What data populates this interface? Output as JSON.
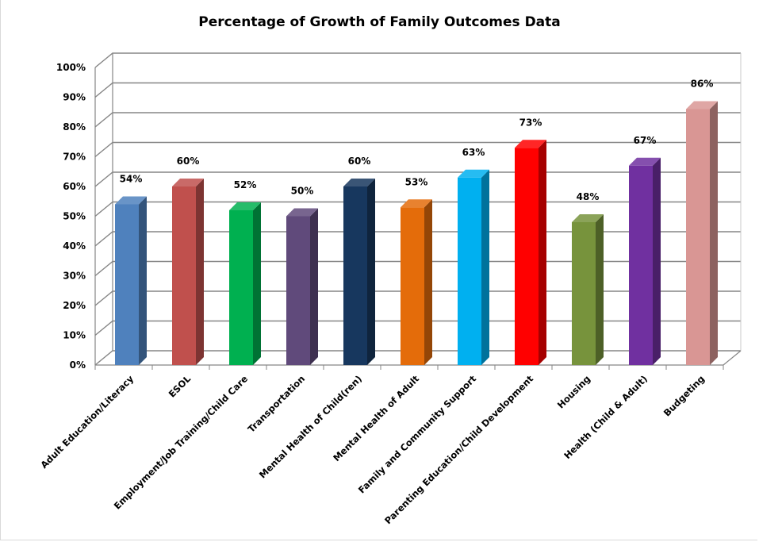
{
  "chart_data": {
    "type": "bar",
    "title": "Percentage of Growth  of Family Outcomes Data",
    "categories": [
      "Adult Education/Literacy",
      "ESOL",
      "Employment/Job Training/Child Care",
      "Transportation",
      "Mental Health of Child(ren)",
      "Mental Health of Adult",
      "Family and Community Support",
      "Parenting Education/Child Development",
      "Housing",
      "Health (Child & Adult)",
      "Budgeting"
    ],
    "values": [
      54,
      60,
      52,
      50,
      60,
      53,
      63,
      73,
      48,
      67,
      86
    ],
    "data_labels": [
      "54%",
      "60%",
      "52%",
      "50%",
      "60%",
      "53%",
      "63%",
      "73%",
      "48%",
      "67%",
      "86%"
    ],
    "colors": [
      "#4f81bd",
      "#c0504d",
      "#00b050",
      "#604a7b",
      "#17375e",
      "#e46c0a",
      "#00b0f0",
      "#ff0000",
      "#77933c",
      "#7030a0",
      "#d99694"
    ],
    "yticks": [
      "0%",
      "10%",
      "20%",
      "30%",
      "40%",
      "50%",
      "60%",
      "70%",
      "80%",
      "90%",
      "100%"
    ],
    "ylim": [
      0,
      100
    ],
    "grid": true,
    "legend": "none"
  }
}
